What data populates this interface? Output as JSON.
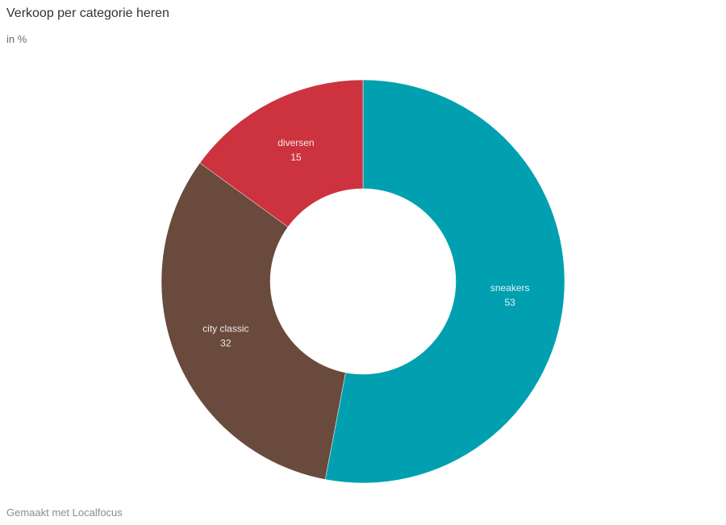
{
  "header": {
    "title": "Verkoop per categorie heren",
    "subtitle": "in %"
  },
  "footer": {
    "credit": "Gemaakt met Localfocus"
  },
  "chart_data": {
    "type": "pie",
    "donut": true,
    "title": "Verkoop per categorie heren",
    "subtitle": "in %",
    "start_angle_deg": 0,
    "direction": "clockwise",
    "slices": [
      {
        "label": "sneakers",
        "value": 53,
        "color": "#00a0b0"
      },
      {
        "label": "city classic",
        "value": 32,
        "color": "#6a4a3c"
      },
      {
        "label": "diversen",
        "value": 15,
        "color": "#cc333f"
      }
    ],
    "legend": "none",
    "data_labels": "inside"
  }
}
